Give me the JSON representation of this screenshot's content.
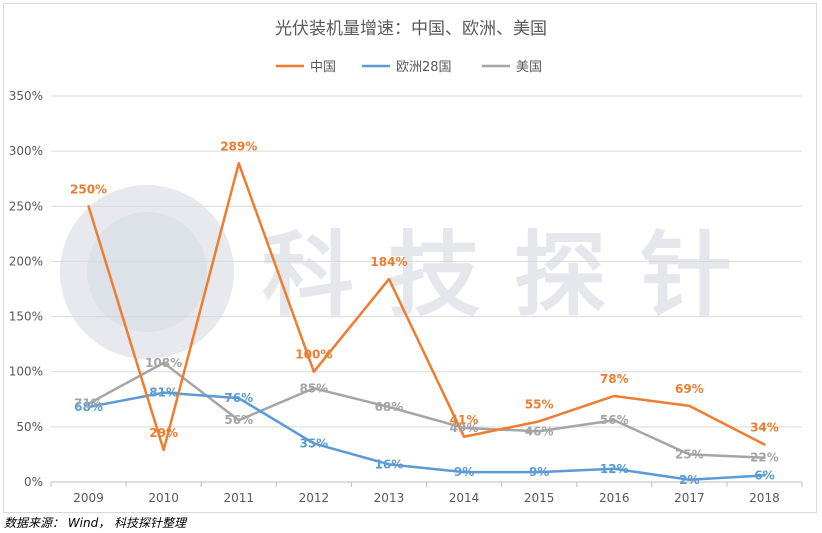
{
  "chart_data": {
    "type": "line",
    "title": "光伏装机量增速：中国、欧洲、美国",
    "categories": [
      "2009",
      "2010",
      "2011",
      "2012",
      "2013",
      "2014",
      "2015",
      "2016",
      "2017",
      "2018"
    ],
    "ylim": [
      0,
      350
    ],
    "yticks": [
      0,
      50,
      100,
      150,
      200,
      250,
      300,
      350
    ],
    "ytick_labels": [
      "0%",
      "50%",
      "100%",
      "150%",
      "200%",
      "250%",
      "300%",
      "350%"
    ],
    "grid": true,
    "legend_position": "top-center",
    "xlabel": "",
    "ylabel": "",
    "series": [
      {
        "name": "中国",
        "color": "#ED7D31",
        "values": [
          250,
          29,
          289,
          100,
          184,
          41,
          55,
          78,
          69,
          34
        ],
        "labels": [
          "250%",
          "29%",
          "289%",
          "100%",
          "184%",
          "41%",
          "55%",
          "78%",
          "69%",
          "34%"
        ]
      },
      {
        "name": "欧洲28国",
        "color": "#5B9BD5",
        "values": [
          68,
          81,
          76,
          35,
          16,
          9,
          9,
          12,
          2,
          6
        ],
        "labels": [
          "68%",
          "81%",
          "76%",
          "35%",
          "16%",
          "9%",
          "9%",
          "12%",
          "2%",
          "6%"
        ]
      },
      {
        "name": "美国",
        "color": "#A5A5A5",
        "values": [
          71,
          108,
          56,
          85,
          68,
          49,
          46,
          56,
          25,
          22
        ],
        "labels": [
          "71%",
          "108%",
          "56%",
          "85%",
          "68%",
          "49%",
          "46%",
          "56%",
          "25%",
          "22%"
        ]
      }
    ]
  },
  "watermark": {
    "text": "科技探针"
  },
  "source_note": "数据来源： Wind， 科技探针整理"
}
